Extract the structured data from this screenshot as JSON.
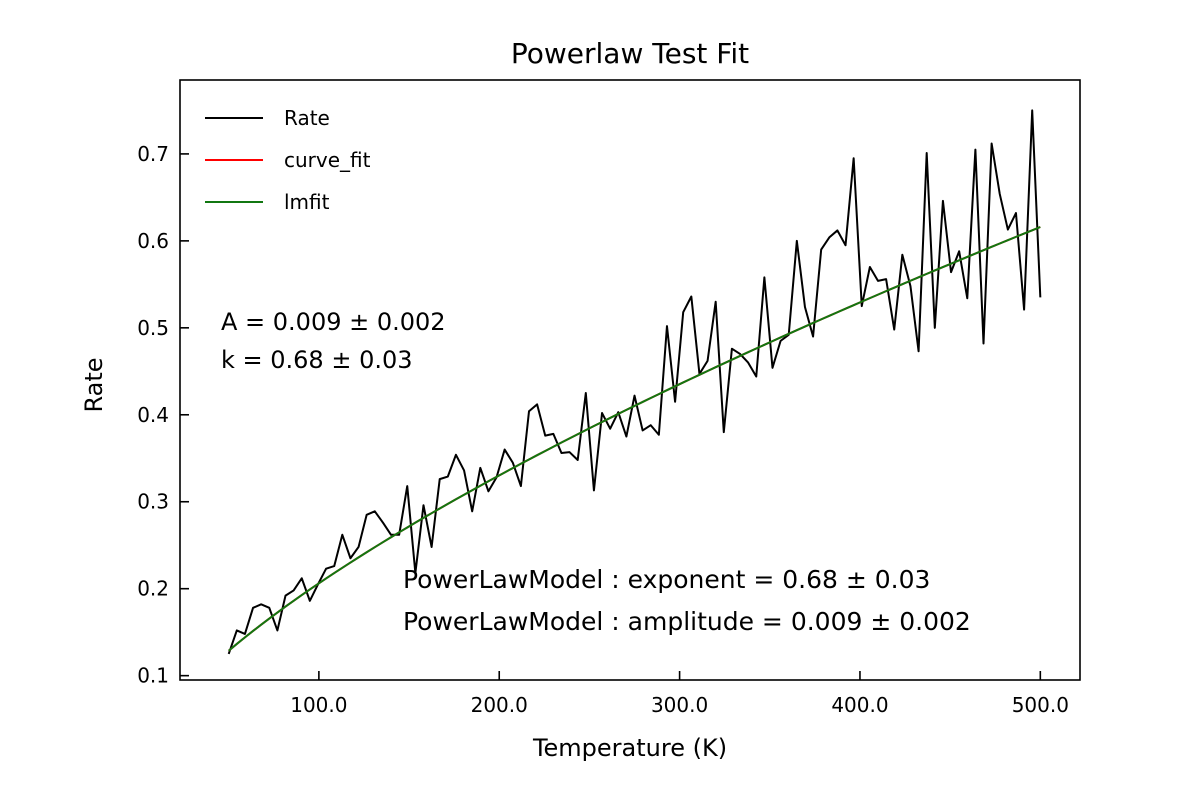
{
  "chart_data": {
    "type": "line",
    "title": "Powerlaw Test Fit",
    "xlabel": "Temperature (K)",
    "ylabel": "Rate",
    "xlim": [
      23,
      522
    ],
    "ylim": [
      0.095,
      0.785
    ],
    "x_ticks": [
      100,
      200,
      300,
      400,
      500
    ],
    "x_tick_labels": [
      "100.0",
      "200.0",
      "300.0",
      "400.0",
      "500.0"
    ],
    "y_ticks": [
      0.1,
      0.2,
      0.3,
      0.4,
      0.5,
      0.6,
      0.7
    ],
    "y_tick_labels": [
      "0.1",
      "0.2",
      "0.3",
      "0.4",
      "0.5",
      "0.6",
      "0.7"
    ],
    "grid": false,
    "legend": {
      "position": "top-left",
      "entries": [
        "Rate",
        "curve_fit",
        "lmfit"
      ]
    },
    "fit": {
      "A": 0.009,
      "k": 0.68
    },
    "annotations": {
      "params_top": [
        "A = 0.009 ± 0.002",
        "k = 0.68 ± 0.03"
      ],
      "params_bottom": [
        "PowerLawModel : exponent = 0.68 ± 0.03",
        "PowerLawModel : amplitude = 0.009 ± 0.002"
      ]
    },
    "series": [
      {
        "name": "Rate",
        "color": "#000000",
        "x": [
          50,
          54.5,
          59,
          63.5,
          68,
          72.5,
          77,
          81.5,
          86,
          90.5,
          95,
          99.5,
          104,
          108.5,
          113,
          117.5,
          122,
          126.5,
          131,
          135.5,
          140,
          144.5,
          149,
          153.5,
          158,
          162.5,
          167,
          171.5,
          176,
          180.5,
          185,
          189.5,
          194,
          198.5,
          203,
          207.5,
          212,
          216.5,
          221,
          225.5,
          230,
          234.5,
          239,
          243.5,
          248,
          252.5,
          257,
          261.5,
          266,
          270.5,
          275,
          279.5,
          284,
          288.5,
          293,
          297.5,
          302,
          306.5,
          311,
          315.5,
          320,
          324.5,
          329,
          333.5,
          338,
          342.5,
          347,
          351.5,
          356,
          360.5,
          365,
          369.5,
          374,
          378.5,
          383,
          387.5,
          392,
          396.5,
          401,
          405.5,
          410,
          414.5,
          419,
          423.5,
          428,
          432.5,
          437,
          441.5,
          446,
          450.5,
          455,
          459.5,
          464,
          468.5,
          473,
          477.5,
          482,
          486.5,
          491,
          495.5,
          500
        ],
        "y": [
          0.125,
          0.152,
          0.148,
          0.178,
          0.182,
          0.178,
          0.152,
          0.192,
          0.198,
          0.212,
          0.186,
          0.205,
          0.223,
          0.226,
          0.262,
          0.235,
          0.248,
          0.285,
          0.289,
          0.276,
          0.262,
          0.262,
          0.318,
          0.218,
          0.296,
          0.248,
          0.326,
          0.329,
          0.354,
          0.336,
          0.289,
          0.339,
          0.312,
          0.328,
          0.36,
          0.345,
          0.318,
          0.404,
          0.412,
          0.376,
          0.378,
          0.356,
          0.357,
          0.348,
          0.425,
          0.313,
          0.402,
          0.384,
          0.403,
          0.375,
          0.422,
          0.382,
          0.388,
          0.377,
          0.502,
          0.415,
          0.518,
          0.536,
          0.447,
          0.462,
          0.53,
          0.38,
          0.476,
          0.47,
          0.46,
          0.444,
          0.558,
          0.454,
          0.485,
          0.492,
          0.6,
          0.524,
          0.49,
          0.59,
          0.604,
          0.612,
          0.595,
          0.695,
          0.525,
          0.57,
          0.554,
          0.556,
          0.498,
          0.584,
          0.548,
          0.473,
          0.701,
          0.5,
          0.646,
          0.564,
          0.588,
          0.534,
          0.705,
          0.482,
          0.712,
          0.654,
          0.613,
          0.632,
          0.521,
          0.75,
          0.535
        ]
      },
      {
        "name": "curve_fit",
        "color": "#ff0000",
        "model": "powerlaw"
      },
      {
        "name": "lmfit",
        "color": "#117711",
        "model": "powerlaw"
      }
    ]
  }
}
